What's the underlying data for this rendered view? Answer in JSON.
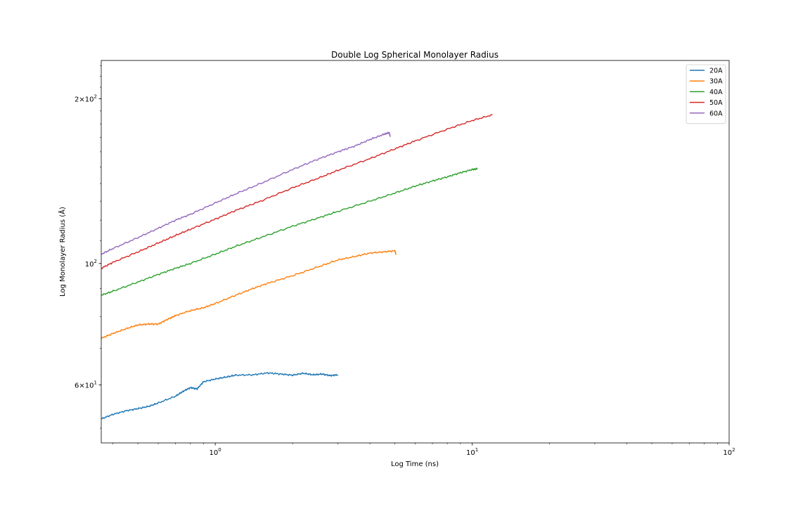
{
  "chart_data": {
    "type": "line",
    "title": "Double Log Spherical Monolayer Radius",
    "xlabel": "Log Time (ns)",
    "ylabel": "Log Monolayer Radius (Å)",
    "x_scale": "log",
    "y_scale": "log",
    "xlim": [
      0.36,
      100
    ],
    "ylim": [
      47,
      235
    ],
    "grid": false,
    "legend_position": "top-right",
    "x_major_ticks": [
      {
        "value": 1,
        "base": "10",
        "exp": "0"
      },
      {
        "value": 10,
        "base": "10",
        "exp": "1"
      },
      {
        "value": 100,
        "base": "10",
        "exp": "2"
      }
    ],
    "y_labeled_ticks": [
      {
        "value": 60,
        "mant": "6",
        "base": "10",
        "exp": "1"
      },
      {
        "value": 100,
        "mant": "",
        "base": "10",
        "exp": "2"
      },
      {
        "value": 200,
        "mant": "2",
        "base": "10",
        "exp": "2"
      }
    ],
    "series": [
      {
        "name": "20A",
        "color": "#1f77b4",
        "x": [
          0.36,
          0.4,
          0.45,
          0.5,
          0.55,
          0.6,
          0.7,
          0.75,
          0.8,
          0.85,
          0.9,
          1.0,
          1.1,
          1.2,
          1.4,
          1.6,
          1.8,
          2.0,
          2.2,
          2.4,
          2.6,
          2.8,
          3.0
        ],
        "y": [
          52.0,
          53.0,
          53.8,
          54.3,
          54.8,
          55.6,
          57.2,
          58.4,
          59.3,
          59.0,
          60.8,
          61.5,
          62.0,
          62.5,
          62.6,
          63.1,
          62.8,
          62.5,
          63.0,
          62.6,
          62.8,
          62.4,
          62.6
        ]
      },
      {
        "name": "30A",
        "color": "#ff7f0e",
        "x": [
          0.36,
          0.4,
          0.45,
          0.5,
          0.55,
          0.6,
          0.65,
          0.7,
          0.8,
          0.9,
          1.0,
          1.2,
          1.4,
          1.6,
          2.0,
          2.5,
          3.0,
          3.5,
          4.0,
          4.5,
          5.0,
          5.05
        ],
        "y": [
          73.0,
          74.5,
          76.0,
          77.2,
          77.5,
          77.5,
          79.0,
          80.3,
          82.0,
          83.0,
          84.5,
          87.5,
          90.0,
          92.0,
          95.0,
          98.5,
          101.5,
          103.0,
          104.5,
          105.0,
          105.5,
          104.0
        ]
      },
      {
        "name": "40A",
        "color": "#2ca02c",
        "x": [
          0.36,
          0.4,
          0.5,
          0.6,
          0.7,
          0.8,
          1.0,
          1.2,
          1.5,
          2.0,
          2.5,
          3.0,
          4.0,
          5.0,
          6.0,
          7.0,
          8.0,
          9.0,
          10.0,
          10.5
        ],
        "y": [
          87.5,
          89.0,
          92.5,
          95.5,
          98.0,
          100.0,
          104.0,
          107.5,
          111.5,
          117.0,
          121.0,
          124.5,
          130.0,
          134.5,
          138.5,
          141.5,
          144.0,
          146.5,
          148.5,
          149.0
        ]
      },
      {
        "name": "50A",
        "color": "#d62728",
        "x": [
          0.36,
          0.4,
          0.5,
          0.6,
          0.7,
          0.8,
          1.0,
          1.2,
          1.5,
          2.0,
          2.5,
          3.0,
          4.0,
          5.0,
          6.0,
          8.0,
          10.0,
          12.0
        ],
        "y": [
          98.0,
          100.5,
          105.0,
          109.0,
          112.5,
          115.5,
          120.5,
          125.0,
          130.0,
          137.5,
          143.0,
          148.0,
          155.5,
          162.0,
          167.5,
          176.0,
          182.5,
          187.0
        ]
      },
      {
        "name": "60A",
        "color": "#9467bd",
        "x": [
          0.36,
          0.4,
          0.5,
          0.6,
          0.7,
          0.8,
          1.0,
          1.2,
          1.5,
          2.0,
          2.5,
          3.0,
          3.5,
          4.0,
          4.5,
          4.75,
          4.8
        ],
        "y": [
          104.0,
          106.5,
          111.5,
          116.0,
          120.0,
          123.0,
          129.0,
          134.0,
          140.0,
          148.5,
          155.0,
          160.0,
          164.0,
          168.5,
          172.0,
          173.5,
          170.5
        ]
      }
    ]
  }
}
